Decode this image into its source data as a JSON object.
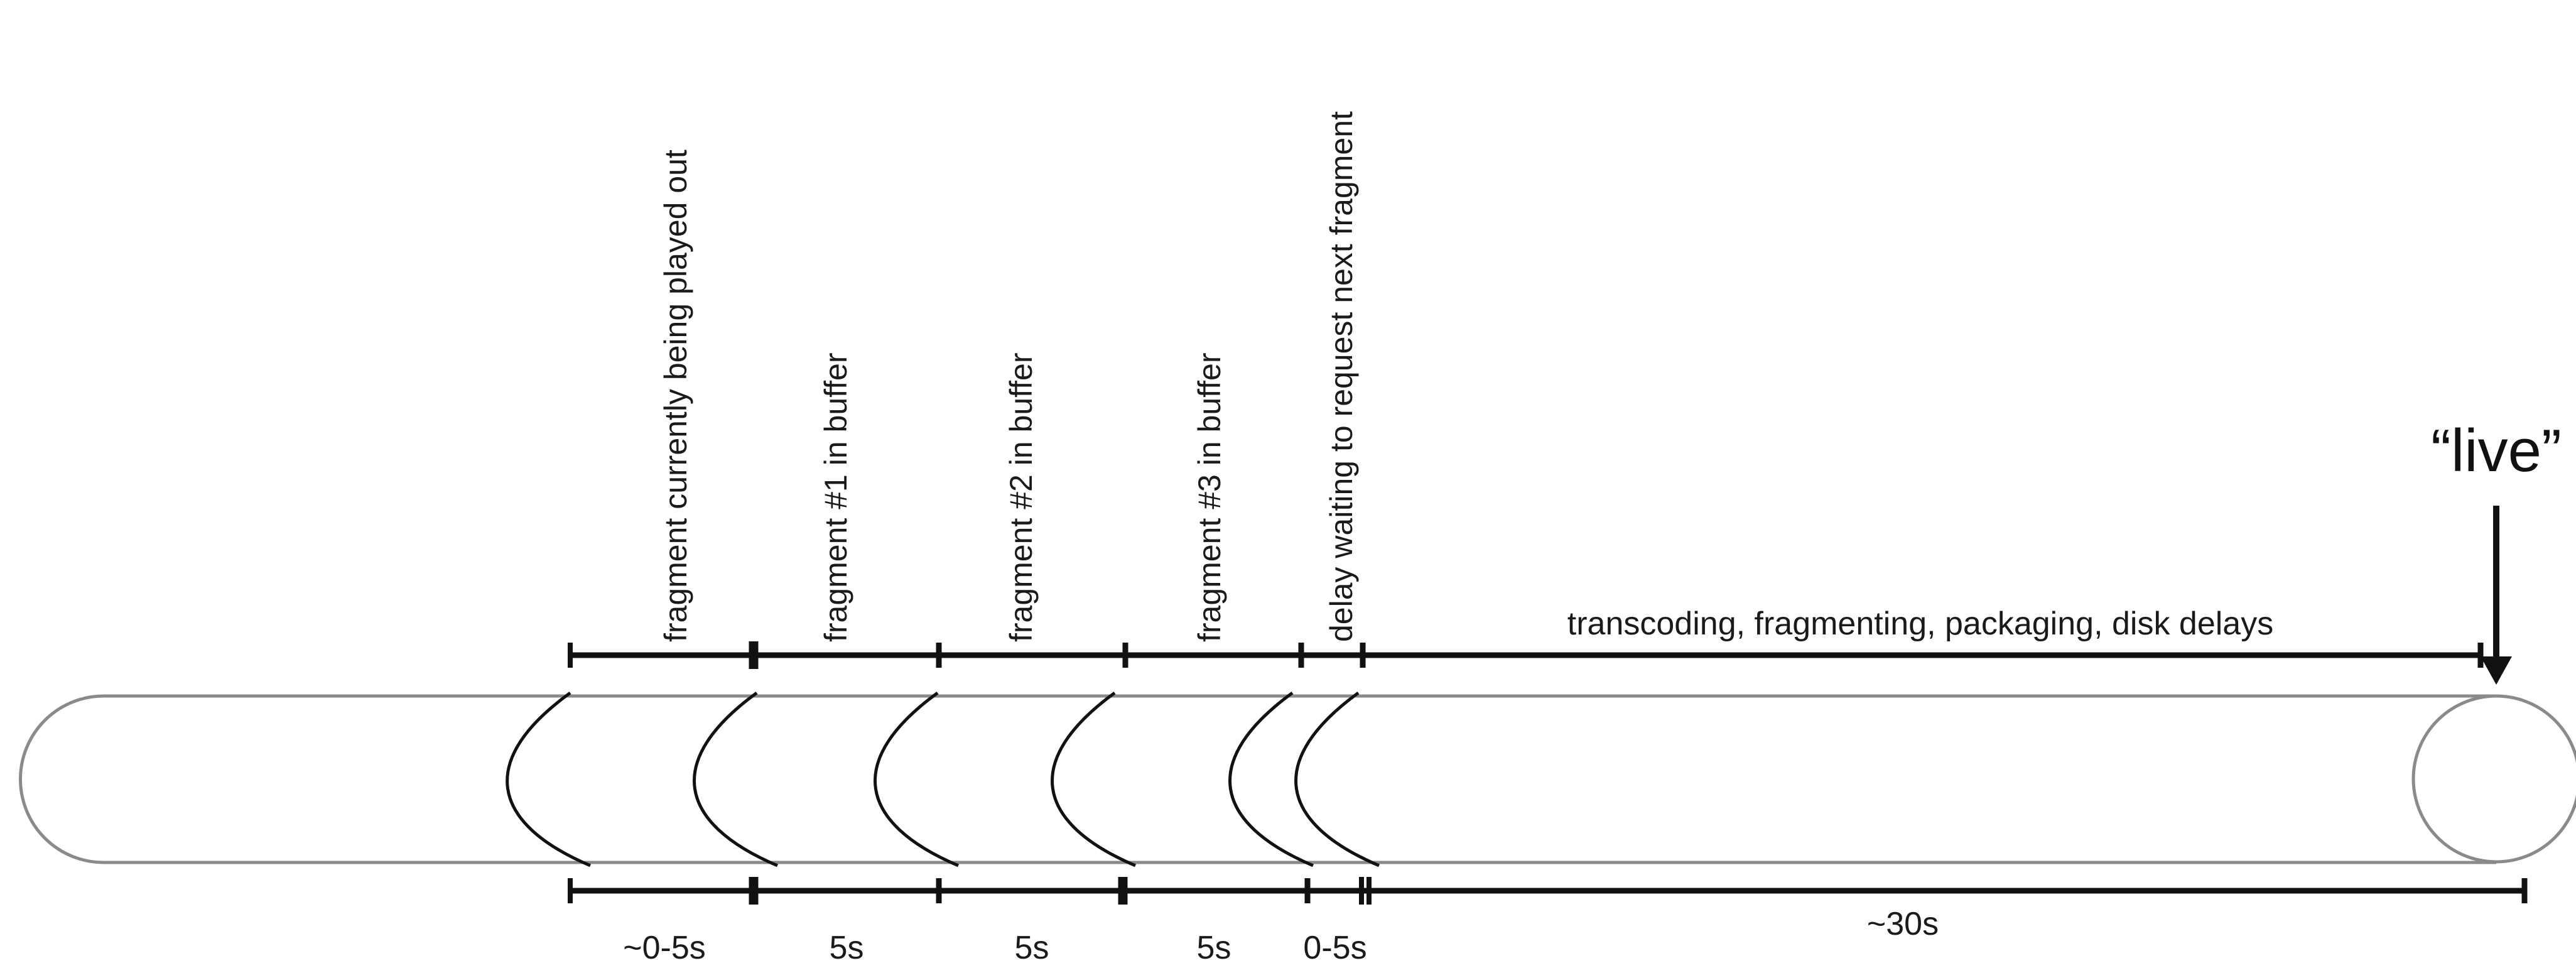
{
  "segments": [
    {
      "label": "fragment currently being played out",
      "duration": "~0-5s"
    },
    {
      "label": "fragment #1 in buffer",
      "duration": "5s"
    },
    {
      "label": "fragment #2 in buffer",
      "duration": "5s"
    },
    {
      "label": "fragment #3 in buffer",
      "duration": "5s"
    },
    {
      "label": "delay waiting to request next fragment",
      "duration": "0-5s"
    }
  ],
  "pipeline": {
    "label": "transcoding, fragmenting, packaging, disk delays",
    "duration": "~30s"
  },
  "live_marker": {
    "label": "“live”"
  },
  "colors": {
    "line": "#111111",
    "tube": "#8a8a8a"
  }
}
